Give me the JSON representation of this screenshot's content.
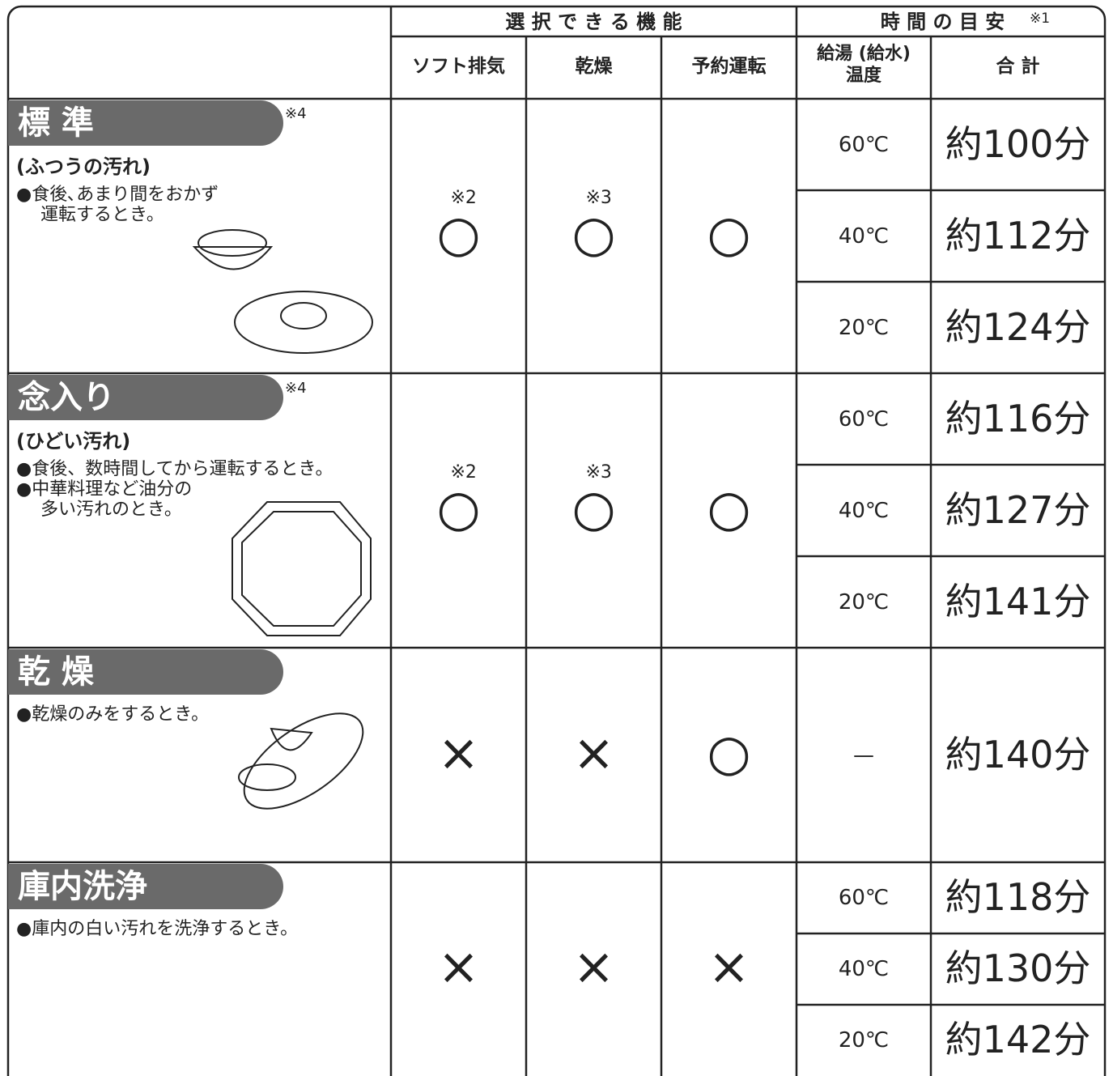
{
  "header": {
    "group_functions": "選 択 で き る 機 能",
    "group_time": "時 間 の 目 安",
    "group_time_note": "※1",
    "functions": [
      "ソフト排気",
      "乾燥",
      "予約運転"
    ],
    "temperature": [
      "給湯 (給水)",
      "温度"
    ],
    "total": "合 計"
  },
  "courses": [
    {
      "name": "標 準",
      "note": "※4",
      "subtitle": "(ふつうの汚れ)",
      "descriptions": [
        "●食後､あまり間をおかず",
        "運転するとき。"
      ],
      "functions": [
        {
          "mark": "○",
          "note": "※2"
        },
        {
          "mark": "○",
          "note": "※3"
        },
        {
          "mark": "○"
        }
      ],
      "times": [
        {
          "temperature": "60℃",
          "total": "約100分"
        },
        {
          "temperature": "40℃",
          "total": "約112分"
        },
        {
          "temperature": "20℃",
          "total": "約124分"
        }
      ]
    },
    {
      "name": "念入り",
      "note": "※4",
      "subtitle": "(ひどい汚れ)",
      "descriptions": [
        "●食後、数時間してから運転するとき。",
        "●中華料理など油分の",
        "多い汚れのとき。"
      ],
      "functions": [
        {
          "mark": "○",
          "note": "※2"
        },
        {
          "mark": "○",
          "note": "※3"
        },
        {
          "mark": "○"
        }
      ],
      "times": [
        {
          "temperature": "60℃",
          "total": "約116分"
        },
        {
          "temperature": "40℃",
          "total": "約127分"
        },
        {
          "temperature": "20℃",
          "total": "約141分"
        }
      ]
    },
    {
      "name": "乾 燥",
      "descriptions": [
        "●乾燥のみをするとき。"
      ],
      "functions": [
        {
          "mark": "×"
        },
        {
          "mark": "×"
        },
        {
          "mark": "○"
        }
      ],
      "times": [
        {
          "temperature": "—",
          "total": "約140分"
        }
      ]
    },
    {
      "name": "庫内洗浄",
      "descriptions": [
        "●庫内の白い汚れを洗浄するとき。"
      ],
      "functions": [
        {
          "mark": "×"
        },
        {
          "mark": "×"
        },
        {
          "mark": "×"
        }
      ],
      "times": [
        {
          "temperature": "60℃",
          "total": "約118分"
        },
        {
          "temperature": "40℃",
          "total": "約130分"
        },
        {
          "temperature": "20℃",
          "total": "約142分"
        }
      ]
    }
  ]
}
